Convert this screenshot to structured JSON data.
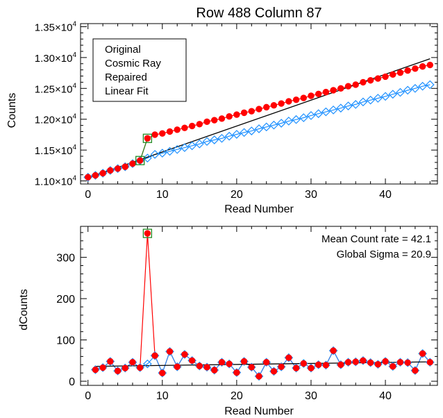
{
  "chart_data": [
    {
      "type": "line",
      "title": "Row 488 Column 87",
      "xlabel": "Read Number",
      "ylabel": "Counts",
      "xlim": [
        -1,
        47
      ],
      "ylim": [
        10950,
        13550
      ],
      "xticks": [
        0,
        10,
        20,
        30,
        40
      ],
      "yticks": [
        {
          "value": 11000,
          "mantissa": "1.10",
          "base": "×10",
          "exp": "4"
        },
        {
          "value": 11500,
          "mantissa": "1.15",
          "base": "×10",
          "exp": "4"
        },
        {
          "value": 12000,
          "mantissa": "1.20",
          "base": "×10",
          "exp": "4"
        },
        {
          "value": 12500,
          "mantissa": "1.25",
          "base": "×10",
          "exp": "4"
        },
        {
          "value": 13000,
          "mantissa": "1.30",
          "base": "×10",
          "exp": "4"
        },
        {
          "value": 13500,
          "mantissa": "1.35",
          "base": "×10",
          "exp": "4"
        }
      ],
      "legend": {
        "placement": "top-left",
        "entries": [
          {
            "label": "Original",
            "color": "#ff0000"
          },
          {
            "label": "Cosmic Ray",
            "color": "#228b22"
          },
          {
            "label": "Repaired",
            "color": "#1e90ff"
          },
          {
            "label": "Linear Fit",
            "color": "#000000"
          }
        ]
      },
      "series": [
        {
          "name": "Original",
          "color": "#ff0000",
          "marker": "filled-circle",
          "x": [
            0,
            1,
            2,
            3,
            4,
            5,
            6,
            7,
            8,
            9,
            10,
            11,
            12,
            13,
            14,
            15,
            16,
            17,
            18,
            19,
            20,
            21,
            22,
            23,
            24,
            25,
            26,
            27,
            28,
            29,
            30,
            31,
            32,
            33,
            34,
            35,
            36,
            37,
            38,
            39,
            40,
            41,
            42,
            43,
            44,
            45,
            46
          ],
          "y": [
            11060,
            11090,
            11125,
            11170,
            11200,
            11230,
            11280,
            11330,
            11690,
            11750,
            11770,
            11800,
            11830,
            11860,
            11890,
            11920,
            11960,
            11985,
            12010,
            12045,
            12075,
            12105,
            12130,
            12165,
            12195,
            12225,
            12255,
            12290,
            12315,
            12345,
            12380,
            12410,
            12440,
            12470,
            12500,
            12535,
            12560,
            12600,
            12630,
            12660,
            12690,
            12725,
            12755,
            12790,
            12820,
            12855,
            12880
          ]
        },
        {
          "name": "Repaired",
          "color": "#1e90ff",
          "marker": "open-diamond",
          "x": [
            0,
            1,
            2,
            3,
            4,
            5,
            6,
            7,
            8,
            9,
            10,
            11,
            12,
            13,
            14,
            15,
            16,
            17,
            18,
            19,
            20,
            21,
            22,
            23,
            24,
            25,
            26,
            27,
            28,
            29,
            30,
            31,
            32,
            33,
            34,
            35,
            36,
            37,
            38,
            39,
            40,
            41,
            42,
            43,
            44,
            45,
            46
          ],
          "y": [
            11060,
            11090,
            11125,
            11170,
            11200,
            11230,
            11280,
            11330,
            11370,
            11430,
            11450,
            11480,
            11510,
            11540,
            11570,
            11600,
            11640,
            11665,
            11690,
            11725,
            11755,
            11785,
            11810,
            11845,
            11875,
            11905,
            11935,
            11970,
            11995,
            12025,
            12060,
            12090,
            12120,
            12150,
            12180,
            12215,
            12240,
            12280,
            12310,
            12340,
            12370,
            12405,
            12435,
            12470,
            12500,
            12535,
            12560
          ]
        },
        {
          "name": "Cosmic Ray",
          "color": "#228b22",
          "marker": "open-square",
          "x": [
            7,
            8
          ],
          "y": [
            11330,
            11690
          ]
        },
        {
          "name": "Linear Fit",
          "color": "#000000",
          "marker": "none",
          "x": [
            0,
            46
          ],
          "y": [
            11050,
            12980
          ]
        }
      ]
    },
    {
      "type": "line",
      "title": "",
      "xlabel": "Read Number",
      "ylabel": "dCounts",
      "xlim": [
        -1,
        47
      ],
      "ylim": [
        -10,
        375
      ],
      "xticks": [
        0,
        10,
        20,
        30,
        40
      ],
      "yticks": [
        0,
        100,
        200,
        300
      ],
      "annotations": [
        {
          "text": "Mean Count rate = 42.1",
          "placement": "top-right",
          "line": 1
        },
        {
          "text": "Global Sigma = 20.9",
          "placement": "top-right",
          "line": 2
        }
      ],
      "series": [
        {
          "name": "Original",
          "color": "#ff0000",
          "marker": "filled-circle",
          "x": [
            1,
            2,
            3,
            4,
            5,
            6,
            7,
            8,
            9,
            10,
            11,
            12,
            13,
            14,
            15,
            16,
            17,
            18,
            19,
            20,
            21,
            22,
            23,
            24,
            25,
            26,
            27,
            28,
            29,
            30,
            31,
            32,
            33,
            34,
            35,
            36,
            37,
            38,
            39,
            40,
            41,
            42,
            43,
            44,
            45,
            46
          ],
          "y": [
            28,
            33,
            48,
            25,
            32,
            46,
            33,
            358,
            62,
            20,
            72,
            35,
            65,
            50,
            37,
            34,
            27,
            46,
            42,
            21,
            48,
            34,
            12,
            46,
            24,
            35,
            57,
            32,
            43,
            32,
            40,
            39,
            74,
            40,
            46,
            47,
            50,
            45,
            41,
            48,
            36,
            46,
            45,
            26,
            67,
            46
          ]
        },
        {
          "name": "Repaired",
          "color": "#1e90ff",
          "marker": "open-diamond",
          "x": [
            1,
            2,
            3,
            4,
            5,
            6,
            7,
            8,
            9,
            10,
            11,
            12,
            13,
            14,
            15,
            16,
            17,
            18,
            19,
            20,
            21,
            22,
            23,
            24,
            25,
            26,
            27,
            28,
            29,
            30,
            31,
            32,
            33,
            34,
            35,
            36,
            37,
            38,
            39,
            40,
            41,
            42,
            43,
            44,
            45,
            46
          ],
          "y": [
            28,
            33,
            48,
            25,
            32,
            46,
            33,
            42,
            62,
            20,
            72,
            35,
            65,
            50,
            37,
            34,
            27,
            46,
            42,
            21,
            48,
            34,
            12,
            46,
            24,
            35,
            57,
            32,
            43,
            32,
            40,
            39,
            74,
            40,
            46,
            47,
            50,
            45,
            41,
            48,
            36,
            46,
            45,
            26,
            67,
            46
          ]
        },
        {
          "name": "Cosmic Ray",
          "color": "#228b22",
          "marker": "open-square",
          "x": [
            8
          ],
          "y": [
            358
          ]
        },
        {
          "name": "Linear Fit",
          "color": "#000000",
          "marker": "none",
          "x": [
            1,
            46
          ],
          "y": [
            36,
            47
          ]
        }
      ]
    }
  ]
}
